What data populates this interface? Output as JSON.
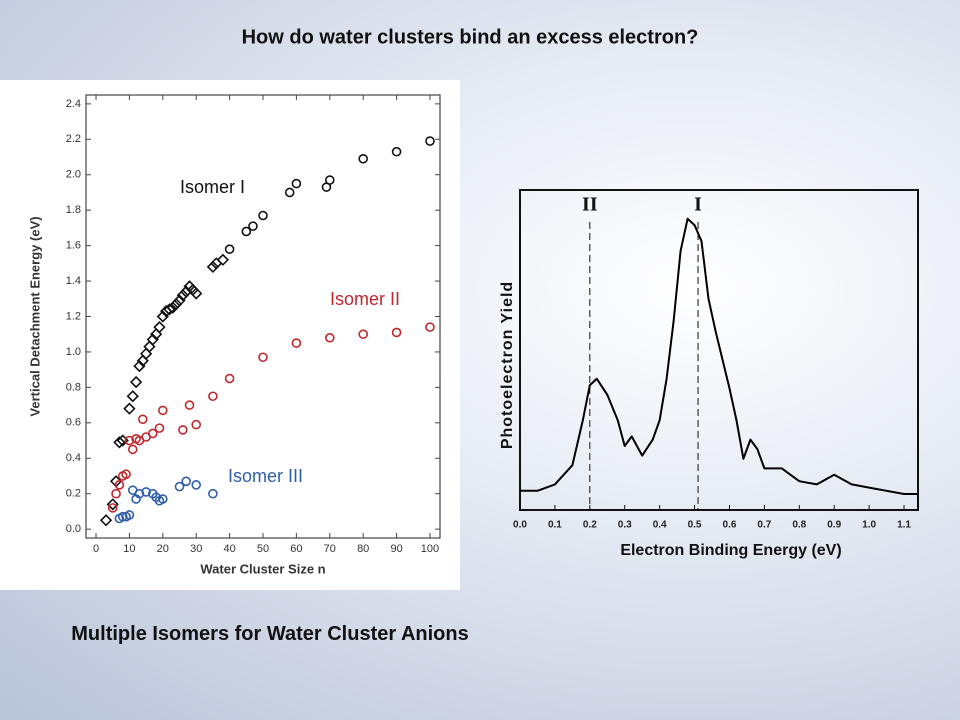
{
  "slide": {
    "title": "How do water clusters bind an excess electron?",
    "caption": "Multiple Isomers for Water Cluster Anions"
  },
  "chart_data": [
    {
      "type": "scatter",
      "xlabel": "Water Cluster Size n",
      "ylabel": "Vertical Detachment Energy (eV)",
      "xlim": [
        -3,
        103
      ],
      "ylim": [
        -0.05,
        2.45
      ],
      "xticks": [
        0,
        10,
        20,
        30,
        40,
        50,
        60,
        70,
        80,
        90,
        100
      ],
      "yticks": [
        {
          "value": 0,
          "label": "0.0"
        },
        {
          "value": 0.2,
          "label": "0.2"
        },
        {
          "value": 0.4,
          "label": "0.4"
        },
        {
          "value": 0.6,
          "label": "0.6"
        },
        {
          "value": 0.8,
          "label": "0.8"
        },
        {
          "value": 1,
          "label": "1.0"
        },
        {
          "value": 1.2,
          "label": "1.2"
        },
        {
          "value": 1.4,
          "label": "1.4"
        },
        {
          "value": 1.6,
          "label": "1.6"
        },
        {
          "value": 1.8,
          "label": "1.8"
        },
        {
          "value": 2,
          "label": "2.0"
        },
        {
          "value": 2.2,
          "label": "2.2"
        },
        {
          "value": 2.4,
          "label": "2.4"
        }
      ],
      "series": [
        {
          "name": "Isomer I",
          "color": "#111111",
          "marker": "diamond",
          "x": [
            3,
            5,
            6,
            7,
            8,
            10,
            11,
            12,
            13,
            14,
            15,
            16,
            17,
            18,
            19,
            20,
            21,
            22,
            23,
            24,
            25,
            26,
            27,
            28,
            29,
            30,
            35,
            36,
            38,
            40,
            45,
            47,
            50,
            58,
            60,
            69,
            70,
            80,
            90,
            100
          ],
          "y": [
            0.05,
            0.14,
            0.27,
            0.49,
            0.5,
            0.68,
            0.75,
            0.83,
            0.92,
            0.95,
            0.99,
            1.03,
            1.07,
            1.1,
            1.14,
            1.2,
            1.23,
            1.24,
            1.25,
            1.27,
            1.29,
            1.32,
            1.34,
            1.37,
            1.35,
            1.33,
            1.48,
            1.5,
            1.52,
            1.58,
            1.68,
            1.71,
            1.77,
            1.9,
            1.95,
            1.93,
            1.97,
            2.09,
            2.13,
            2.19
          ]
        },
        {
          "name": "Isomer II",
          "color": "#c0272d",
          "marker": "circle",
          "x": [
            5,
            6,
            7,
            8,
            9,
            10,
            11,
            12,
            13,
            14,
            15,
            17,
            19,
            20,
            26,
            28,
            30,
            35,
            40,
            50,
            60,
            70,
            80,
            90,
            100
          ],
          "y": [
            0.12,
            0.2,
            0.25,
            0.3,
            0.31,
            0.5,
            0.45,
            0.51,
            0.5,
            0.62,
            0.52,
            0.54,
            0.57,
            0.67,
            0.56,
            0.7,
            0.59,
            0.75,
            0.85,
            0.97,
            1.05,
            1.08,
            1.1,
            1.11,
            1.14
          ]
        },
        {
          "name": "Isomer III",
          "color": "#2f5fa8",
          "marker": "circle",
          "x": [
            7,
            8,
            9,
            10,
            11,
            12,
            13,
            15,
            17,
            18,
            19,
            20,
            25,
            27,
            30,
            35
          ],
          "y": [
            0.06,
            0.07,
            0.07,
            0.08,
            0.22,
            0.17,
            0.2,
            0.21,
            0.2,
            0.18,
            0.16,
            0.17,
            0.24,
            0.27,
            0.25,
            0.2
          ]
        }
      ]
    },
    {
      "type": "line",
      "xlabel": "Electron Binding Energy (eV)",
      "ylabel": "Photoelectron Yield",
      "xlim": [
        0,
        1.14
      ],
      "ylim": [
        0,
        1
      ],
      "xticks": [
        {
          "value": 0,
          "label": "0.0"
        },
        0.1,
        0.2,
        0.3,
        0.4,
        0.5,
        0.6,
        0.7,
        0.8,
        0.9,
        {
          "value": 1,
          "label": "1.0"
        },
        1.1
      ],
      "markers": [
        {
          "x": 0.2,
          "label": "II"
        },
        {
          "x": 0.51,
          "label": "I"
        }
      ],
      "series": [
        {
          "color": "#000000",
          "x": [
            0,
            0.05,
            0.1,
            0.15,
            0.18,
            0.2,
            0.22,
            0.25,
            0.28,
            0.3,
            0.32,
            0.35,
            0.38,
            0.4,
            0.42,
            0.44,
            0.46,
            0.48,
            0.5,
            0.52,
            0.54,
            0.56,
            0.58,
            0.6,
            0.62,
            0.64,
            0.66,
            0.68,
            0.7,
            0.75,
            0.8,
            0.85,
            0.9,
            0.95,
            1,
            1.05,
            1.1,
            1.14
          ],
          "values": [
            0.06,
            0.06,
            0.08,
            0.14,
            0.28,
            0.39,
            0.41,
            0.36,
            0.28,
            0.2,
            0.23,
            0.17,
            0.22,
            0.28,
            0.41,
            0.59,
            0.81,
            0.91,
            0.89,
            0.84,
            0.66,
            0.56,
            0.47,
            0.38,
            0.28,
            0.16,
            0.22,
            0.19,
            0.13,
            0.13,
            0.09,
            0.08,
            0.11,
            0.08,
            0.07,
            0.06,
            0.05,
            0.05
          ]
        }
      ]
    }
  ]
}
